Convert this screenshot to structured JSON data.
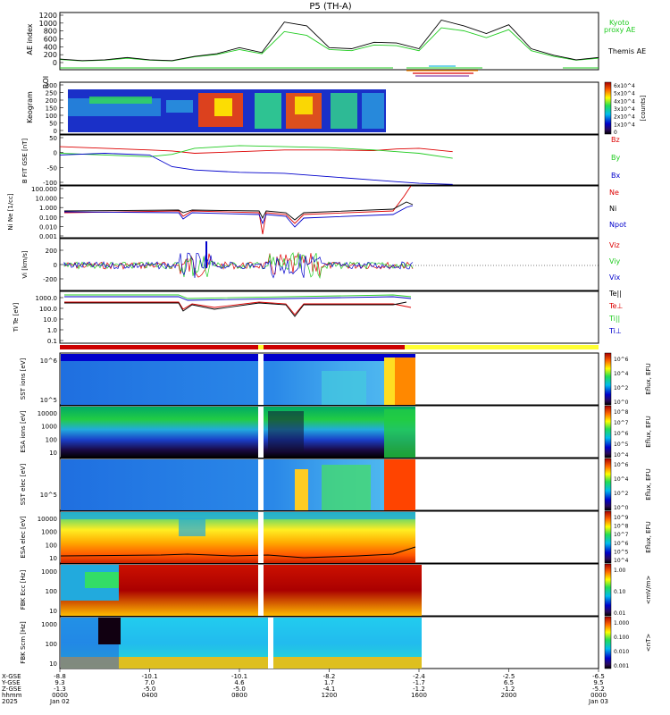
{
  "figure": {
    "title": "P5 (TH-A)",
    "date_label": "Jan 02",
    "year_label": "2025",
    "end_date_label": "Jan 03"
  },
  "colors": {
    "black": "#000000",
    "green": "#22cc22",
    "red": "#dd0000",
    "blue": "#0000cc",
    "yellow": "#ffff33",
    "orange": "#ff8800",
    "purple": "#8844aa",
    "cyan": "#22bbdd"
  },
  "chart_data": [
    {
      "type": "line",
      "panel": "ae",
      "ylabel": "AE index",
      "ylim": [
        -200,
        1300
      ],
      "yticks": [
        "1200",
        "1000",
        "800",
        "600",
        "400",
        "200",
        "0"
      ],
      "legend": [
        {
          "text": "Kyoto",
          "color": "green"
        },
        {
          "text": "proxy AE",
          "color": "green"
        },
        {
          "text": "Themis AE",
          "color": "black"
        }
      ],
      "x": [
        0,
        1,
        2,
        3,
        4,
        5,
        6,
        7,
        8,
        9,
        10,
        11,
        12,
        13,
        14,
        15,
        16,
        17,
        18,
        19,
        20,
        21,
        22,
        23,
        24
      ],
      "series": [
        {
          "name": "Themis AE",
          "color": "black",
          "values": [
            80,
            40,
            60,
            120,
            60,
            40,
            150,
            220,
            380,
            250,
            1050,
            950,
            380,
            350,
            520,
            500,
            350,
            1100,
            950,
            750,
            980,
            350,
            180,
            60,
            120
          ]
        },
        {
          "name": "Kyoto proxy AE",
          "color": "green",
          "values": [
            70,
            30,
            50,
            100,
            50,
            30,
            140,
            200,
            330,
            220,
            800,
            700,
            330,
            300,
            450,
            430,
            300,
            900,
            820,
            640,
            850,
            300,
            150,
            50,
            100
          ]
        }
      ]
    },
    {
      "type": "heatmap",
      "panel": "keogram",
      "ylabel": "Keogram",
      "ylabel2": "ROI",
      "yticks": [
        "300",
        "250",
        "200",
        "150",
        "100",
        "50",
        "0"
      ],
      "colorbar_ticks": [
        "6x10^4",
        "5x10^4",
        "4x10^4",
        "3x10^4",
        "2x10^4",
        "1x10^4",
        "0"
      ],
      "colorbar_unit": "[counts]"
    },
    {
      "type": "line",
      "panel": "bfield",
      "ylabel": "B FIT GSE [nT]",
      "ylim": [
        -100,
        50
      ],
      "yticks": [
        "50",
        "0",
        "-50",
        "-100"
      ],
      "x": [
        0,
        2,
        4,
        5,
        6,
        8,
        10,
        12,
        14,
        15,
        16,
        17.5
      ],
      "series": [
        {
          "name": "Bz",
          "color": "red",
          "values": [
            15,
            10,
            5,
            2,
            -5,
            0,
            5,
            5,
            3,
            8,
            10,
            0
          ]
        },
        {
          "name": "By",
          "color": "green",
          "values": [
            -5,
            -10,
            -15,
            -8,
            10,
            18,
            15,
            12,
            5,
            0,
            -5,
            -20
          ]
        },
        {
          "name": "Bx",
          "color": "blue",
          "values": [
            -10,
            -5,
            -10,
            -45,
            -55,
            -62,
            -65,
            -75,
            -85,
            -90,
            -95,
            -98
          ]
        }
      ]
    },
    {
      "type": "line",
      "panel": "density",
      "ylabel": "Ni Ne [1/cc]",
      "yticks": [
        "100.000",
        "10.000",
        "1.000",
        "0.100",
        "0.010",
        "0.001"
      ],
      "legend": [
        {
          "text": "Ne",
          "color": "red"
        },
        {
          "text": "Ni",
          "color": "black"
        },
        {
          "text": "Npot",
          "color": "blue"
        }
      ]
    },
    {
      "type": "line",
      "panel": "velocity",
      "ylabel": "Vi [km/s]",
      "yticks": [
        "200",
        "0",
        "-200"
      ],
      "legend": [
        {
          "text": "Viz",
          "color": "red"
        },
        {
          "text": "Viy",
          "color": "green"
        },
        {
          "text": "Vix",
          "color": "blue"
        }
      ]
    },
    {
      "type": "line",
      "panel": "temperature",
      "ylabel": "Ti Te [eV]",
      "yticks": [
        "1000.0",
        "100.0",
        "10.0",
        "1.0",
        "0.1"
      ],
      "legend": [
        {
          "text": "Te||",
          "color": "black"
        },
        {
          "text": "Te⊥",
          "color": "red"
        },
        {
          "text": "Ti||",
          "color": "green"
        },
        {
          "text": "Ti⊥",
          "color": "blue"
        }
      ]
    },
    {
      "type": "heatmap",
      "panel": "sst_ion",
      "ylabel": "SST ions [eV]",
      "yticks": [
        "10^6",
        "10^5"
      ],
      "colorbar_ticks": [
        "10^6",
        "10^4",
        "10^2",
        "10^0"
      ],
      "colorbar_unit": "Eflux, EFU"
    },
    {
      "type": "heatmap",
      "panel": "esa_ion",
      "ylabel": "ESA ions [eV]",
      "yticks": [
        "10000",
        "1000",
        "100",
        "10"
      ],
      "colorbar_ticks": [
        "10^8",
        "10^7",
        "10^6",
        "10^5",
        "10^4"
      ],
      "colorbar_unit": "Eflux, EFU"
    },
    {
      "type": "heatmap",
      "panel": "sst_elec",
      "ylabel": "SST elec [eV]",
      "yticks": [
        "10^5"
      ],
      "colorbar_ticks": [
        "10^6",
        "10^4",
        "10^2",
        "10^0"
      ],
      "colorbar_unit": "Eflux, EFU"
    },
    {
      "type": "heatmap",
      "panel": "esa_elec",
      "ylabel": "ESA elec [eV]",
      "yticks": [
        "10000",
        "1000",
        "100",
        "10"
      ],
      "colorbar_ticks": [
        "10^9",
        "10^8",
        "10^7",
        "10^6",
        "10^5",
        "10^4"
      ],
      "colorbar_unit": "Eflux, EFU"
    },
    {
      "type": "heatmap",
      "panel": "fbk_e",
      "ylabel": "FBK Ecc [Hz]",
      "yticks": [
        "1000",
        "100",
        "10"
      ],
      "colorbar_ticks": [
        "1.00",
        "0.10",
        "0.01"
      ],
      "colorbar_unit": "<mV/m>"
    },
    {
      "type": "heatmap",
      "panel": "fbk_b",
      "ylabel": "FBK Scm [Hz]",
      "yticks": [
        "1000",
        "100",
        "10"
      ],
      "colorbar_ticks": [
        "1.000",
        "0.100",
        "0.010",
        "0.001"
      ],
      "colorbar_unit": "<nT>"
    }
  ],
  "xaxis": {
    "row_labels": [
      "X-GSE",
      "Y-GSE",
      "Z-GSE",
      "hhmm",
      "2025"
    ],
    "columns": [
      {
        "vals": [
          "-8.8",
          "9.3",
          "-1.3",
          "0000",
          "Jan 02"
        ]
      },
      {
        "vals": [
          "-10.1",
          "7.0",
          "-5.0",
          "0400",
          ""
        ]
      },
      {
        "vals": [
          "-10.1",
          "4.6",
          "-5.0",
          "0800",
          ""
        ]
      },
      {
        "vals": [
          "-8.2",
          "1.7",
          "-4.1",
          "1200",
          ""
        ]
      },
      {
        "vals": [
          "-2.4",
          "-1.7",
          "-1.2",
          "1600",
          ""
        ]
      },
      {
        "vals": [
          "-2.5",
          "6.5",
          "-1.2",
          "2000",
          ""
        ]
      },
      {
        "vals": [
          "-6.5",
          "9.5",
          "-5.2",
          "0000",
          "Jan 03"
        ]
      }
    ]
  }
}
